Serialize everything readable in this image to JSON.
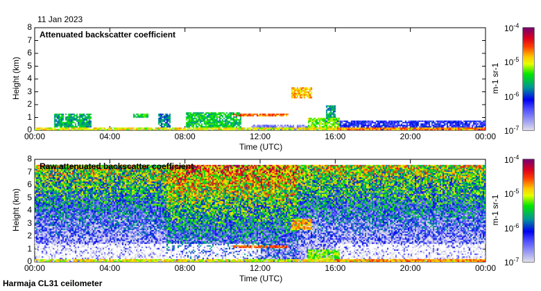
{
  "chart_data": [
    {
      "type": "heatmap",
      "title": "Attenuated backscatter coefficient",
      "date": "11 Jan 2023",
      "xlabel": "Time (UTC)",
      "ylabel": "Height (km)",
      "xlim": [
        0,
        24
      ],
      "ylim": [
        0,
        8
      ],
      "xticks": [
        "00:00",
        "04:00",
        "08:00",
        "12:00",
        "16:00",
        "20:00",
        "00:00"
      ],
      "yticks": [
        "0",
        "1",
        "2",
        "3",
        "4",
        "5",
        "6",
        "7",
        "8"
      ],
      "colorbar": {
        "label": "m-1 sr-1",
        "min_exp": -7,
        "max_exp": -4,
        "ticks": [
          "10-7",
          "10-6",
          "10-5",
          "10-4"
        ]
      },
      "noise": 0,
      "features": [
        {
          "t0": 0,
          "t1": 24,
          "h0": 0,
          "h1": 0.3,
          "logv": -5.0
        },
        {
          "t0": 1,
          "t1": 3,
          "h0": 0.3,
          "h1": 1.3,
          "logv": -5.6
        },
        {
          "t0": 5.2,
          "t1": 6,
          "h0": 1.0,
          "h1": 1.3,
          "logv": -5.4
        },
        {
          "t0": 6.5,
          "t1": 7.2,
          "h0": 0.3,
          "h1": 1.4,
          "logv": -5.8
        },
        {
          "t0": 8,
          "t1": 11,
          "h0": 0.3,
          "h1": 1.5,
          "logv": -5.5
        },
        {
          "t0": 10.5,
          "t1": 13.5,
          "h0": 1.1,
          "h1": 1.3,
          "logv": -4.6
        },
        {
          "t0": 11.5,
          "t1": 14.5,
          "h0": 0,
          "h1": 0.5,
          "logv": -6.6
        },
        {
          "t0": 13.6,
          "t1": 14.7,
          "h0": 2.5,
          "h1": 3.4,
          "logv": -4.8
        },
        {
          "t0": 14.5,
          "t1": 16.2,
          "h0": 0,
          "h1": 1.0,
          "logv": -5.2
        },
        {
          "t0": 15.5,
          "t1": 16,
          "h0": 0.5,
          "h1": 2.0,
          "logv": -5.7
        },
        {
          "t0": 16,
          "t1": 24,
          "h0": 0,
          "h1": 0.8,
          "logv": -6.2
        },
        {
          "t0": 16,
          "t1": 24,
          "h0": 0,
          "h1": 0.3,
          "logv": -4.7
        }
      ]
    },
    {
      "type": "heatmap",
      "title": "Raw attenuated backscatter coefficient",
      "xlabel": "Time (UTC)",
      "ylabel": "Height (km)",
      "xlim": [
        0,
        24
      ],
      "ylim": [
        0,
        8
      ],
      "xticks": [
        "00:00",
        "04:00",
        "08:00",
        "12:00",
        "16:00",
        "20:00",
        "00:00"
      ],
      "yticks": [
        "0",
        "1",
        "2",
        "3",
        "4",
        "5",
        "6",
        "7",
        "8"
      ],
      "colorbar": {
        "label": "m-1 sr-1",
        "min_exp": -7,
        "max_exp": -4,
        "ticks": [
          "10-7",
          "10-6",
          "10-5",
          "10-4"
        ]
      },
      "noise": 1,
      "features": [
        {
          "t0": 0,
          "t1": 24,
          "h0": 0,
          "h1": 0.3,
          "logv": -5.0
        },
        {
          "t0": 10.5,
          "t1": 13.5,
          "h0": 1.1,
          "h1": 1.3,
          "logv": -4.6
        },
        {
          "t0": 13.6,
          "t1": 14.7,
          "h0": 2.5,
          "h1": 3.4,
          "logv": -4.8
        },
        {
          "t0": 14.5,
          "t1": 16.2,
          "h0": 0,
          "h1": 1.0,
          "logv": -5.2
        },
        {
          "t0": 16,
          "t1": 24,
          "h0": 0,
          "h1": 0.3,
          "logv": -4.7
        }
      ]
    }
  ],
  "footer": "Harmaja CL31 ceilometer"
}
